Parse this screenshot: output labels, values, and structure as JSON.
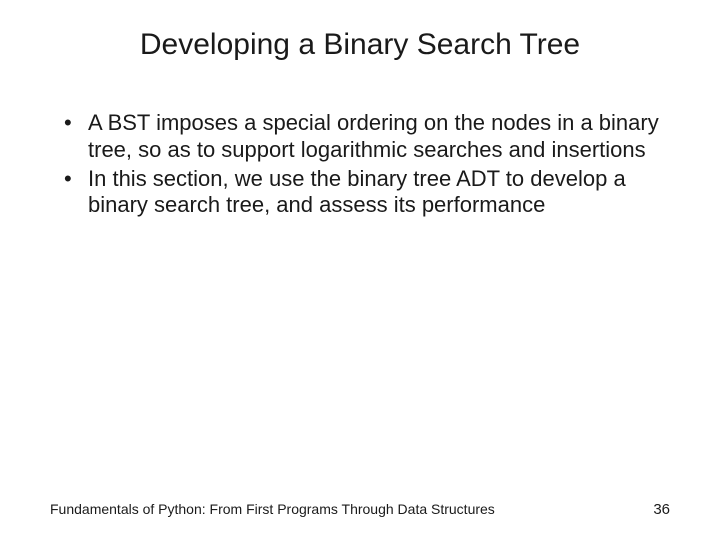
{
  "slide": {
    "title": "Developing a Binary Search Tree",
    "bullets": [
      "A BST imposes a special ordering on the nodes in a binary tree, so as to support logarithmic searches and insertions",
      "In this section, we use the binary tree ADT to develop a binary search tree, and assess its performance"
    ],
    "footer_text": "Fundamentals of Python: From First Programs Through Data Structures",
    "page_number": "36"
  },
  "styling": {
    "background_color": "#ffffff",
    "title_fontsize": 30,
    "title_color": "#1a1a1a",
    "body_fontsize": 22,
    "body_color": "#1a1a1a",
    "footer_fontsize": 14,
    "page_number_fontsize": 15,
    "font_family": "Arial",
    "slide_width": 720,
    "slide_height": 540
  }
}
